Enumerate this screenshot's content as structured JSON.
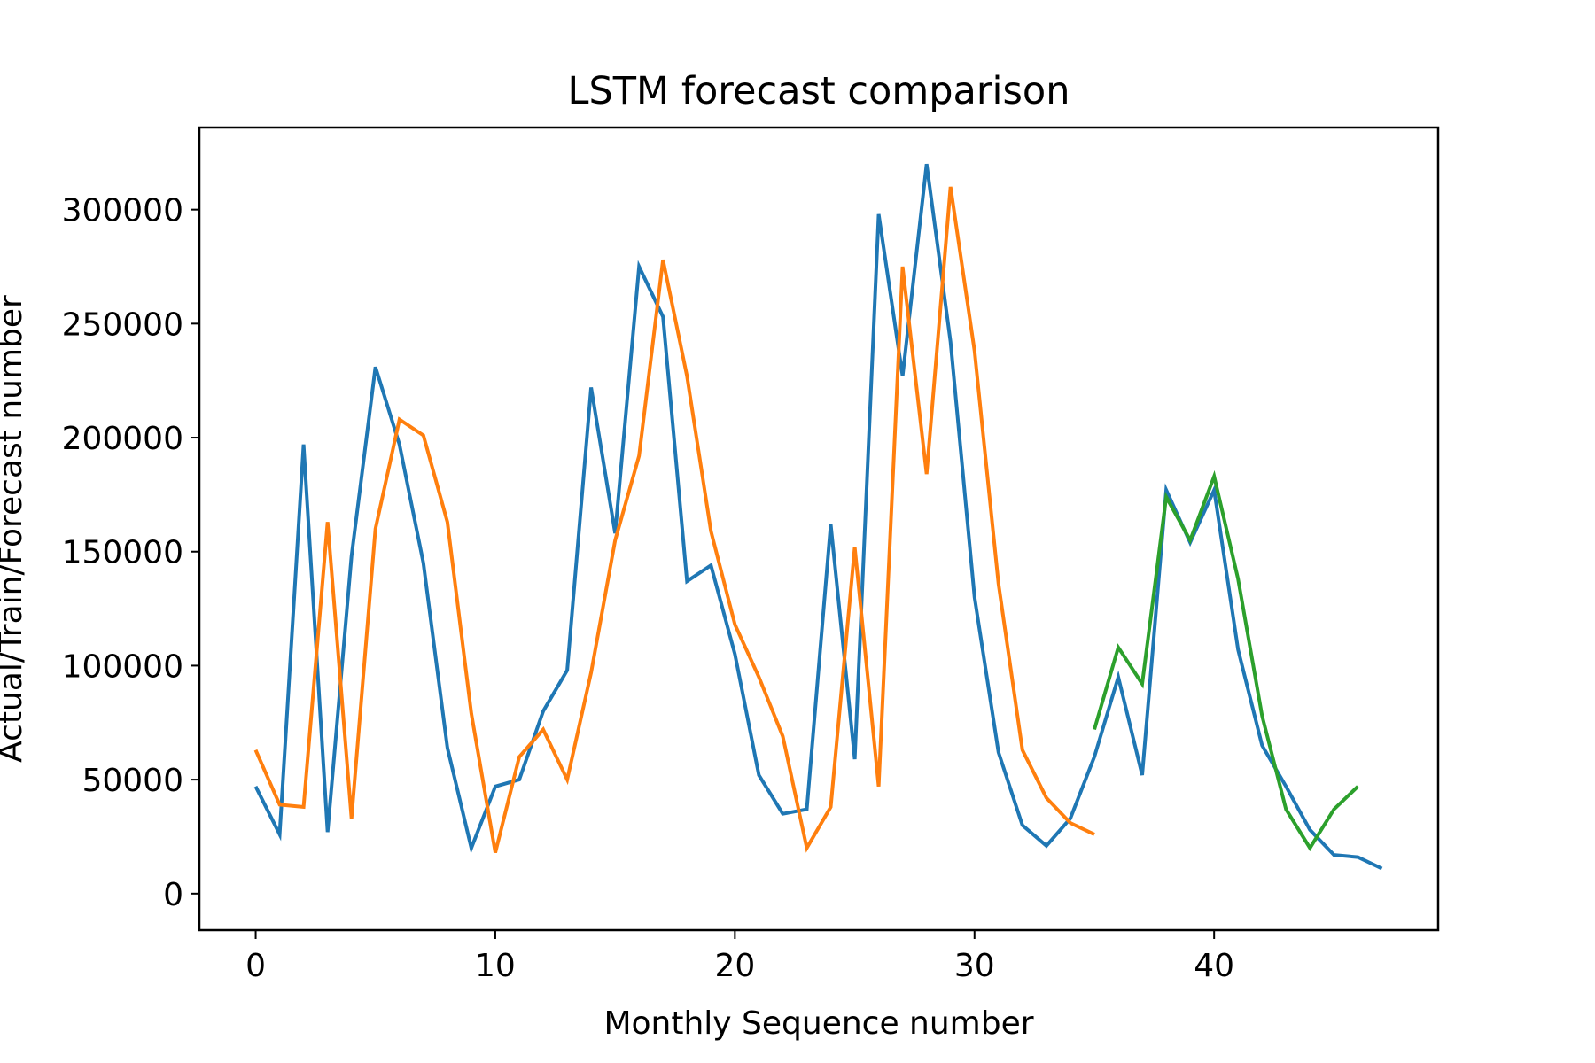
{
  "chart_data": {
    "type": "line",
    "title": "LSTM forecast comparison",
    "xlabel": "Monthly Sequence number",
    "ylabel": "Actual/Train/Forecast number",
    "xlim": [
      -2.35,
      49.35
    ],
    "ylim": [
      -16000,
      336000
    ],
    "xticks": [
      0,
      10,
      20,
      30,
      40
    ],
    "yticks": [
      0,
      50000,
      100000,
      150000,
      200000,
      250000,
      300000
    ],
    "grid": false,
    "legend": "none",
    "series": [
      {
        "color": "#1f77b4",
        "x": [
          0,
          1,
          2,
          3,
          4,
          5,
          6,
          7,
          8,
          9,
          10,
          11,
          12,
          13,
          14,
          15,
          16,
          17,
          18,
          19,
          20,
          21,
          22,
          23,
          24,
          25,
          26,
          27,
          28,
          29,
          30,
          31,
          32,
          33,
          34,
          35,
          36,
          37,
          38,
          39,
          40,
          41,
          42,
          43,
          44,
          45,
          46,
          47
        ],
        "y": [
          47000,
          26000,
          197000,
          27000,
          148000,
          231000,
          197000,
          145000,
          64000,
          20000,
          47000,
          50000,
          80000,
          98000,
          222000,
          158000,
          275000,
          253000,
          137000,
          144000,
          105000,
          52000,
          35000,
          37000,
          162000,
          59000,
          298000,
          227000,
          320000,
          242000,
          130000,
          62000,
          30000,
          21000,
          33000,
          60000,
          95000,
          52000,
          177000,
          154000,
          177000,
          107000,
          65000,
          47000,
          28000,
          17000,
          16000,
          11000
        ]
      },
      {
        "color": "#ff7f0e",
        "x": [
          0,
          1,
          2,
          3,
          4,
          5,
          6,
          7,
          8,
          9,
          10,
          11,
          12,
          13,
          14,
          15,
          16,
          17,
          18,
          19,
          20,
          21,
          22,
          23,
          24,
          25,
          26,
          27,
          28,
          29,
          30,
          31,
          32,
          33,
          34,
          35
        ],
        "y": [
          63000,
          39000,
          38000,
          163000,
          33000,
          160000,
          208000,
          201000,
          163000,
          79000,
          18000,
          60000,
          72000,
          50000,
          97000,
          155000,
          192000,
          278000,
          227000,
          159000,
          118000,
          95000,
          69000,
          20000,
          38000,
          152000,
          47000,
          275000,
          184000,
          310000,
          238000,
          136000,
          63000,
          42000,
          31000,
          26000
        ]
      },
      {
        "color": "#2ca02c",
        "x": [
          35,
          36,
          37,
          38,
          39,
          40,
          41,
          42,
          43,
          44,
          45,
          46
        ],
        "y": [
          72000,
          108000,
          92000,
          174000,
          155000,
          183000,
          138000,
          78000,
          37000,
          20000,
          37000,
          47000
        ]
      }
    ]
  }
}
